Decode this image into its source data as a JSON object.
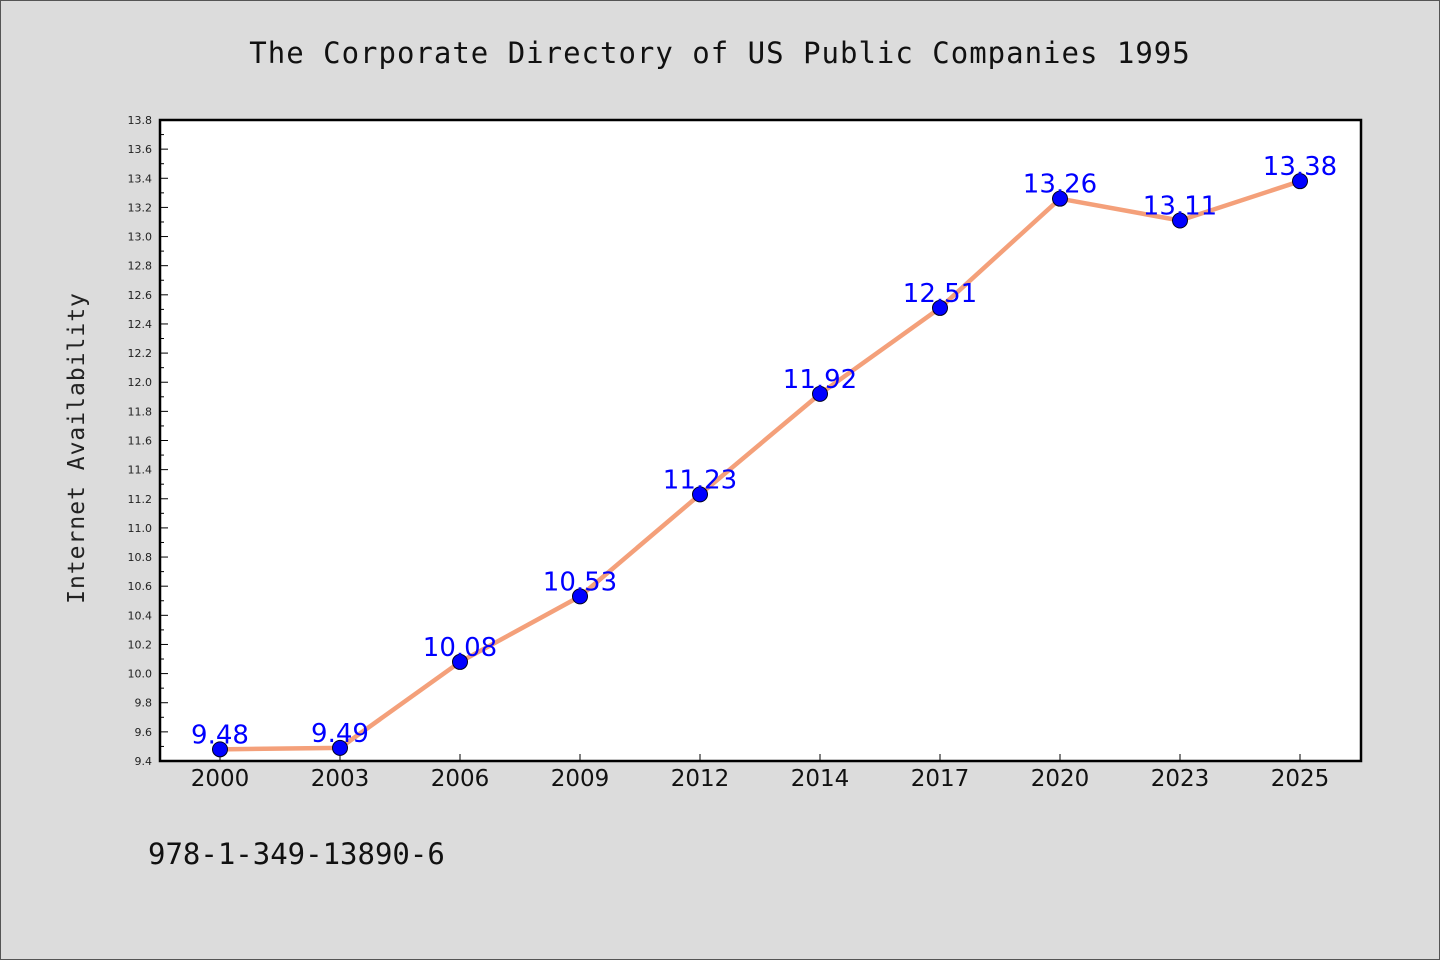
{
  "chart_data": {
    "type": "line",
    "title": "The Corporate Directory of US Public Companies 1995",
    "xlabel": "",
    "ylabel": "Internet Availability",
    "categories": [
      "2000",
      "2003",
      "2006",
      "2009",
      "2012",
      "2014",
      "2017",
      "2020",
      "2023",
      "2025"
    ],
    "values": [
      9.48,
      9.49,
      10.08,
      10.53,
      11.23,
      11.92,
      12.51,
      13.26,
      13.11,
      13.38
    ],
    "data_labels": [
      "9.48",
      "9.49",
      "10.08",
      "10.53",
      "11.23",
      "11.92",
      "12.51",
      "13.26",
      "13.11",
      "13.38"
    ],
    "ylim": [
      9.4,
      13.8
    ],
    "yticks": [
      "9.4",
      "9.6",
      "9.8",
      "10.0",
      "10.2",
      "10.4",
      "10.6",
      "10.8",
      "11.0",
      "11.2",
      "11.4",
      "11.6",
      "11.8",
      "12.0",
      "12.2",
      "12.4",
      "12.6",
      "12.8",
      "13.0",
      "13.2",
      "13.4",
      "13.6",
      "13.8"
    ],
    "grid": false,
    "colors": {
      "line": "#f4a07a",
      "marker": "#0000ff",
      "data_label": "#0000ff",
      "plot_background": "#ffffff",
      "figure_background": "#dcdcdc"
    }
  },
  "footer": {
    "text": "978-1-349-13890-6"
  }
}
